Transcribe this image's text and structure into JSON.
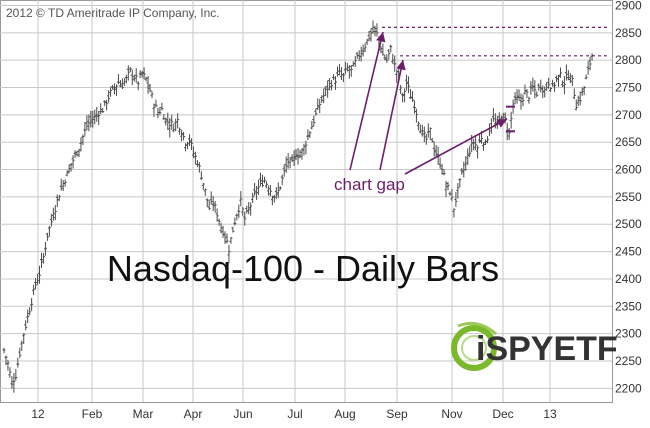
{
  "copyright": "2012 © TD Ameritrade IP Company, Inc.",
  "title": "Nasdaq-100 - Daily Bars",
  "annotation": "chart gap",
  "logo_text": "iSPYETF",
  "colors": {
    "bars": "#4a4a4a",
    "grid": "#c8c8c8",
    "axis_text": "#333333",
    "annotation": "#6b1f6b",
    "logo_green": "#7ab929",
    "logo_text": "#333333"
  },
  "chart_data": {
    "type": "ohlc",
    "title": "Nasdaq-100 - Daily Bars",
    "xlabel": "",
    "ylabel": "",
    "y_ticks": [
      2200,
      2250,
      2300,
      2350,
      2400,
      2450,
      2500,
      2550,
      2600,
      2650,
      2700,
      2750,
      2800,
      2850,
      2900
    ],
    "ylim": [
      2175,
      2910
    ],
    "x_ticks": [
      "12",
      "Feb",
      "Mar",
      "Apr",
      "Jun",
      "Jul",
      "Aug",
      "Sep",
      "Nov",
      "Dec",
      "13"
    ],
    "grid": true,
    "y_axis_side": "right",
    "series": [
      {
        "name": "",
        "points": [
          [
            0,
            2270
          ],
          [
            4,
            2245
          ],
          [
            8,
            2210
          ],
          [
            12,
            2225
          ],
          [
            16,
            2265
          ],
          [
            20,
            2300
          ],
          [
            24,
            2330
          ],
          [
            28,
            2360
          ],
          [
            32,
            2390
          ],
          [
            36,
            2410
          ],
          [
            40,
            2440
          ],
          [
            44,
            2480
          ],
          [
            48,
            2505
          ],
          [
            52,
            2530
          ],
          [
            56,
            2555
          ],
          [
            60,
            2575
          ],
          [
            64,
            2590
          ],
          [
            68,
            2610
          ],
          [
            72,
            2625
          ],
          [
            76,
            2640
          ],
          [
            80,
            2660
          ],
          [
            84,
            2680
          ],
          [
            88,
            2690
          ],
          [
            92,
            2695
          ],
          [
            96,
            2705
          ],
          [
            100,
            2710
          ],
          [
            104,
            2725
          ],
          [
            108,
            2740
          ],
          [
            112,
            2750
          ],
          [
            116,
            2760
          ],
          [
            120,
            2755
          ],
          [
            124,
            2765
          ],
          [
            128,
            2780
          ],
          [
            132,
            2770
          ],
          [
            136,
            2760
          ],
          [
            140,
            2775
          ],
          [
            144,
            2765
          ],
          [
            148,
            2745
          ],
          [
            152,
            2720
          ],
          [
            156,
            2705
          ],
          [
            160,
            2710
          ],
          [
            164,
            2690
          ],
          [
            168,
            2685
          ],
          [
            172,
            2680
          ],
          [
            176,
            2690
          ],
          [
            180,
            2670
          ],
          [
            184,
            2650
          ],
          [
            188,
            2655
          ],
          [
            192,
            2630
          ],
          [
            196,
            2615
          ],
          [
            200,
            2590
          ],
          [
            204,
            2560
          ],
          [
            208,
            2530
          ],
          [
            212,
            2540
          ],
          [
            216,
            2520
          ],
          [
            220,
            2495
          ],
          [
            224,
            2480
          ],
          [
            228,
            2455
          ],
          [
            232,
            2490
          ],
          [
            236,
            2520
          ],
          [
            240,
            2540
          ],
          [
            244,
            2510
          ],
          [
            248,
            2525
          ],
          [
            252,
            2545
          ],
          [
            256,
            2560
          ],
          [
            260,
            2575
          ],
          [
            264,
            2580
          ],
          [
            268,
            2570
          ],
          [
            272,
            2555
          ],
          [
            276,
            2550
          ],
          [
            280,
            2570
          ],
          [
            284,
            2595
          ],
          [
            288,
            2615
          ],
          [
            292,
            2610
          ],
          [
            296,
            2630
          ],
          [
            300,
            2625
          ],
          [
            304,
            2640
          ],
          [
            308,
            2660
          ],
          [
            312,
            2680
          ],
          [
            316,
            2700
          ],
          [
            320,
            2720
          ],
          [
            324,
            2735
          ],
          [
            328,
            2750
          ],
          [
            332,
            2760
          ],
          [
            336,
            2765
          ],
          [
            340,
            2775
          ],
          [
            344,
            2770
          ],
          [
            348,
            2785
          ],
          [
            352,
            2780
          ],
          [
            356,
            2795
          ],
          [
            360,
            2810
          ],
          [
            364,
            2820
          ],
          [
            368,
            2835
          ],
          [
            372,
            2850
          ],
          [
            376,
            2855
          ],
          [
            380,
            2840
          ],
          [
            384,
            2810
          ],
          [
            388,
            2800
          ],
          [
            392,
            2820
          ],
          [
            396,
            2790
          ],
          [
            400,
            2770
          ],
          [
            404,
            2730
          ],
          [
            408,
            2760
          ],
          [
            412,
            2735
          ],
          [
            416,
            2720
          ],
          [
            420,
            2690
          ],
          [
            424,
            2665
          ],
          [
            428,
            2655
          ],
          [
            432,
            2670
          ],
          [
            436,
            2640
          ],
          [
            440,
            2620
          ],
          [
            444,
            2605
          ],
          [
            448,
            2570
          ],
          [
            452,
            2560
          ],
          [
            456,
            2530
          ],
          [
            460,
            2560
          ],
          [
            464,
            2590
          ],
          [
            468,
            2610
          ],
          [
            472,
            2635
          ],
          [
            476,
            2650
          ],
          [
            480,
            2640
          ],
          [
            484,
            2660
          ],
          [
            488,
            2645
          ],
          [
            492,
            2675
          ],
          [
            496,
            2690
          ],
          [
            500,
            2680
          ],
          [
            504,
            2700
          ],
          [
            508,
            2690
          ],
          [
            512,
            2665
          ],
          [
            516,
            2720
          ],
          [
            520,
            2730
          ],
          [
            524,
            2725
          ],
          [
            528,
            2740
          ],
          [
            532,
            2735
          ],
          [
            536,
            2750
          ],
          [
            540,
            2740
          ],
          [
            544,
            2755
          ],
          [
            548,
            2745
          ],
          [
            552,
            2760
          ],
          [
            556,
            2750
          ],
          [
            560,
            2765
          ],
          [
            564,
            2770
          ],
          [
            568,
            2760
          ],
          [
            572,
            2775
          ],
          [
            576,
            2760
          ],
          [
            580,
            2720
          ],
          [
            584,
            2730
          ],
          [
            588,
            2750
          ],
          [
            592,
            2780
          ],
          [
            596,
            2810
          ]
        ]
      }
    ],
    "resistance_lines": [
      2860,
      2808
    ],
    "gap_marks": [
      2715,
      2670
    ],
    "annotations": [
      "chart gap"
    ]
  }
}
